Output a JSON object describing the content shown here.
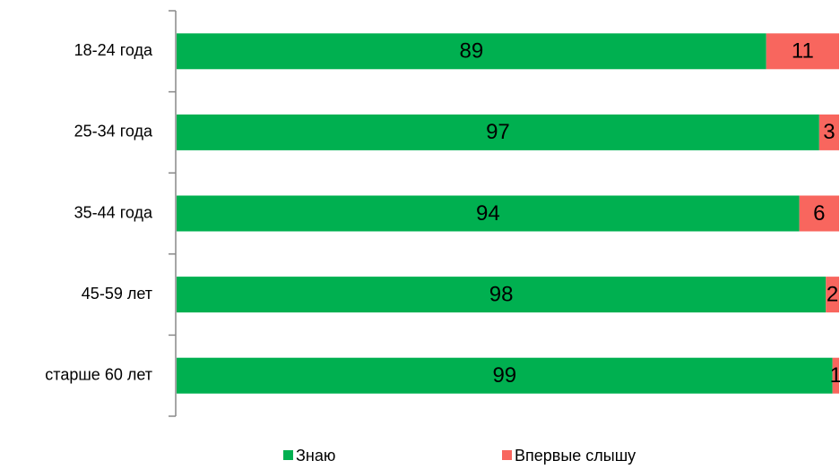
{
  "chart_data": {
    "type": "stacked-bar-horizontal",
    "categories": [
      "18-24 года",
      "25-34 года",
      "35-44 года",
      "45-59 лет",
      "старше 60 лет"
    ],
    "series": [
      {
        "name": "Знаю",
        "color": "#00b050",
        "values": [
          89,
          97,
          94,
          98,
          99
        ]
      },
      {
        "name": "Впервые слышу",
        "color": "#f8665e",
        "values": [
          11,
          3,
          6,
          2,
          1
        ]
      }
    ]
  }
}
